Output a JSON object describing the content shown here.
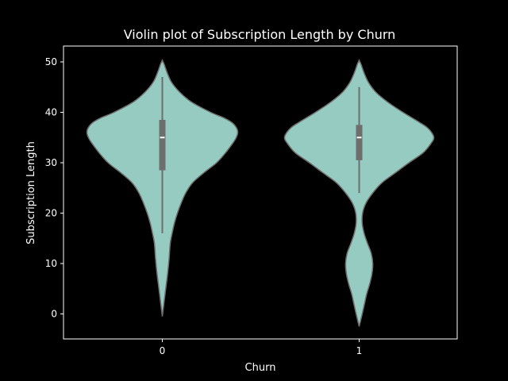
{
  "chart_data": {
    "type": "violin",
    "title": "Violin plot of Subscription Length by Churn",
    "xlabel": "Churn",
    "ylabel": "Subscription Length",
    "categories": [
      "0",
      "1"
    ],
    "ylim": [
      -5,
      55
    ],
    "yticks": [
      0,
      10,
      20,
      30,
      40,
      50
    ],
    "colors": {
      "background": "#000000",
      "violin_fill": "#96cbc1",
      "violin_edge": "#6e6e6e",
      "box": "#6e6e6e",
      "median": "#ffffff",
      "axes": "#ffffff",
      "text": "#ffffff"
    },
    "violins": [
      {
        "category": "0",
        "kde_range": [
          -0.5,
          50.3
        ],
        "density": [
          [
            -0.5,
            0.0
          ],
          [
            2,
            0.02
          ],
          [
            5,
            0.045
          ],
          [
            8,
            0.07
          ],
          [
            11,
            0.09
          ],
          [
            14,
            0.105
          ],
          [
            16,
            0.13
          ],
          [
            18,
            0.16
          ],
          [
            20,
            0.2
          ],
          [
            22,
            0.25
          ],
          [
            24,
            0.31
          ],
          [
            26,
            0.4
          ],
          [
            28,
            0.55
          ],
          [
            30,
            0.72
          ],
          [
            32,
            0.84
          ],
          [
            34,
            0.94
          ],
          [
            35,
            0.98
          ],
          [
            36,
            1.0
          ],
          [
            37,
            0.98
          ],
          [
            38,
            0.92
          ],
          [
            39,
            0.8
          ],
          [
            40,
            0.64
          ],
          [
            42,
            0.39
          ],
          [
            44,
            0.23
          ],
          [
            46,
            0.12
          ],
          [
            48,
            0.06
          ],
          [
            49.5,
            0.025
          ],
          [
            50.3,
            0.0
          ]
        ],
        "box": {
          "q1": 28.5,
          "median": 35,
          "q3": 38.5,
          "whisker_low": 16,
          "whisker_high": 47
        }
      },
      {
        "category": "1",
        "kde_range": [
          -2.5,
          50.3
        ],
        "density": [
          [
            -2.5,
            0.0
          ],
          [
            0,
            0.04
          ],
          [
            2,
            0.07
          ],
          [
            4,
            0.1
          ],
          [
            6,
            0.14
          ],
          [
            8,
            0.17
          ],
          [
            10,
            0.18
          ],
          [
            12,
            0.16
          ],
          [
            14,
            0.11
          ],
          [
            16,
            0.065
          ],
          [
            18,
            0.04
          ],
          [
            20,
            0.045
          ],
          [
            22,
            0.09
          ],
          [
            24,
            0.18
          ],
          [
            26,
            0.3
          ],
          [
            28,
            0.48
          ],
          [
            30,
            0.66
          ],
          [
            32,
            0.85
          ],
          [
            34,
            0.96
          ],
          [
            35,
            0.99
          ],
          [
            36,
            0.96
          ],
          [
            37,
            0.9
          ],
          [
            38,
            0.8
          ],
          [
            40,
            0.58
          ],
          [
            42,
            0.38
          ],
          [
            44,
            0.22
          ],
          [
            46,
            0.12
          ],
          [
            48,
            0.06
          ],
          [
            49.5,
            0.025
          ],
          [
            50.3,
            0.0
          ]
        ],
        "box": {
          "q1": 30.5,
          "median": 35,
          "q3": 37.5,
          "whisker_low": 24,
          "whisker_high": 45
        }
      }
    ]
  }
}
